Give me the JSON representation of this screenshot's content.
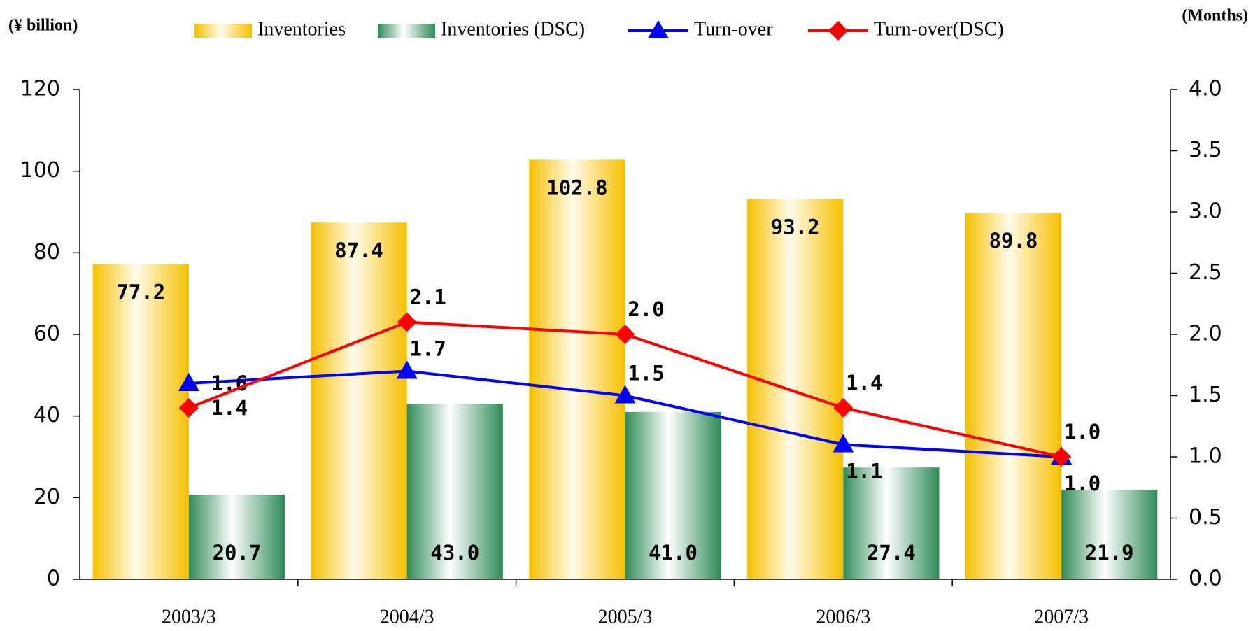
{
  "chart_data": {
    "type": "bar_line",
    "y_label": "(¥ billion)",
    "y2_label": "(Months)",
    "categories": [
      "2003/3",
      "2004/3",
      "2005/3",
      "2006/3",
      "2007/3"
    ],
    "series": [
      {
        "name": "Inventories",
        "type": "bar",
        "color": "#f5c000",
        "values": [
          77.2,
          87.4,
          102.8,
          93.2,
          89.8
        ]
      },
      {
        "name": "Inventories (DSC)",
        "type": "bar",
        "color": "#2e8b57",
        "values": [
          20.7,
          43.0,
          41.0,
          27.4,
          21.9
        ],
        "value_labels": [
          "20.7",
          "43.0",
          "41.0",
          "27.4",
          "21.9"
        ]
      },
      {
        "name": "Turn-over",
        "type": "line",
        "axis": "y2",
        "marker": "triangle",
        "color": "#0000ff",
        "values": [
          1.6,
          1.7,
          1.5,
          1.1,
          1.0
        ],
        "value_labels": [
          "1.6",
          "1.7",
          "1.5",
          "1.1",
          "1.0"
        ]
      },
      {
        "name": "Turn-over(DSC)",
        "type": "line",
        "axis": "y2",
        "marker": "diamond",
        "color": "#ff0000",
        "values": [
          1.4,
          2.1,
          2.0,
          1.4,
          1.0
        ],
        "value_labels": [
          "1.4",
          "2.1",
          "2.0",
          "1.4",
          "1.0"
        ]
      }
    ],
    "ylim": [
      0,
      120
    ],
    "yticks": [
      0,
      20,
      40,
      60,
      80,
      100,
      120
    ],
    "y2lim": [
      0,
      4
    ],
    "y2ticks": [
      {
        "value": 0,
        "label": "0.0"
      },
      {
        "value": 0.5,
        "label": "0.5"
      },
      {
        "value": 1,
        "label": "1.0"
      },
      {
        "value": 1.5,
        "label": "1.5"
      },
      {
        "value": 2,
        "label": "2.0"
      },
      {
        "value": 2.5,
        "label": "2.5"
      },
      {
        "value": 3,
        "label": "3.0"
      },
      {
        "value": 3.5,
        "label": "3.5"
      },
      {
        "value": 4,
        "label": "4.0"
      }
    ],
    "grid": false
  }
}
